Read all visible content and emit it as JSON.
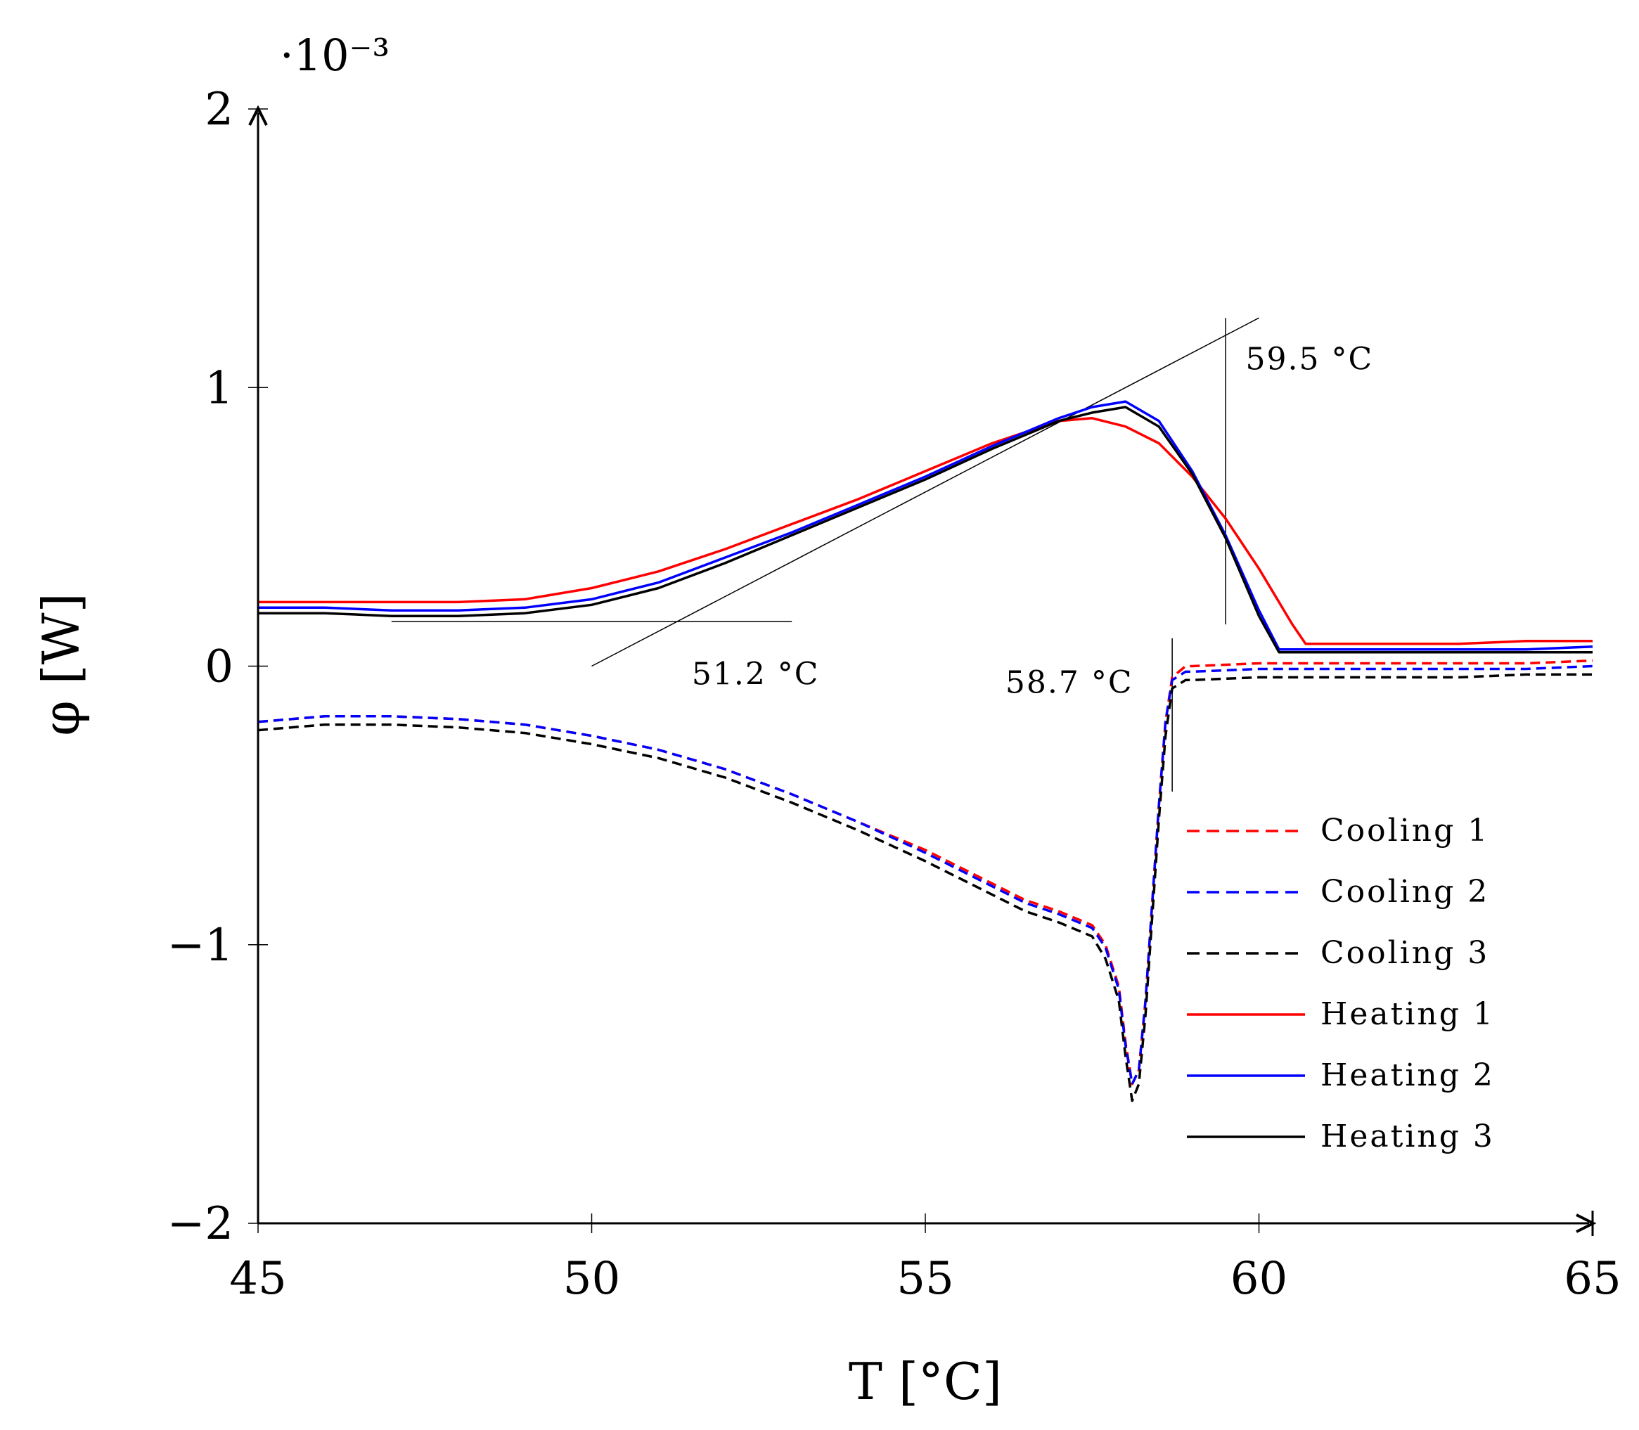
{
  "chart_data": {
    "type": "line",
    "title": "",
    "xlabel": "T [°C]",
    "ylabel": "φ [W]",
    "y_exponent": "·10⁻³",
    "xlim": [
      45,
      65
    ],
    "ylim": [
      -2,
      2
    ],
    "x_ticks": [
      45,
      50,
      55,
      60,
      65
    ],
    "x_tick_labels": [
      "45",
      "50",
      "55",
      "60",
      "65"
    ],
    "y_ticks": [
      -2,
      -1,
      0,
      1,
      2
    ],
    "y_tick_labels": [
      "−2",
      "−1",
      "0",
      "1",
      "2"
    ],
    "grid": false,
    "legend_position": "bottom-right",
    "series": [
      {
        "name": "Cooling 1",
        "color": "#ff0000",
        "dash": true,
        "x": [
          45,
          46,
          47,
          48,
          49,
          50,
          51,
          52,
          53,
          54,
          55,
          56,
          56.5,
          57,
          57.5,
          57.7,
          57.9,
          58.0,
          58.1,
          58.2,
          58.3,
          58.4,
          58.5,
          58.6,
          58.7,
          58.9,
          59,
          60,
          61,
          62,
          63,
          64,
          65
        ],
        "values": [
          -0.2,
          -0.18,
          -0.18,
          -0.19,
          -0.21,
          -0.25,
          -0.3,
          -0.37,
          -0.46,
          -0.56,
          -0.66,
          -0.78,
          -0.84,
          -0.88,
          -0.93,
          -1.0,
          -1.15,
          -1.35,
          -1.5,
          -1.45,
          -1.2,
          -0.85,
          -0.5,
          -0.2,
          -0.04,
          0.0,
          0.0,
          0.01,
          0.01,
          0.01,
          0.01,
          0.01,
          0.02
        ]
      },
      {
        "name": "Cooling 2",
        "color": "#0000ff",
        "dash": true,
        "x": [
          45,
          46,
          47,
          48,
          49,
          50,
          51,
          52,
          53,
          54,
          55,
          56,
          56.5,
          57,
          57.5,
          57.7,
          57.9,
          58.0,
          58.1,
          58.2,
          58.3,
          58.4,
          58.5,
          58.6,
          58.7,
          58.9,
          59,
          60,
          61,
          62,
          63,
          64,
          65
        ],
        "values": [
          -0.2,
          -0.18,
          -0.18,
          -0.19,
          -0.21,
          -0.25,
          -0.3,
          -0.37,
          -0.46,
          -0.56,
          -0.67,
          -0.79,
          -0.85,
          -0.89,
          -0.94,
          -1.01,
          -1.16,
          -1.36,
          -1.5,
          -1.45,
          -1.2,
          -0.85,
          -0.5,
          -0.2,
          -0.05,
          -0.02,
          -0.02,
          -0.01,
          -0.01,
          -0.01,
          -0.01,
          -0.01,
          0.0
        ]
      },
      {
        "name": "Cooling 3",
        "color": "#000000",
        "dash": true,
        "x": [
          45,
          46,
          47,
          48,
          49,
          50,
          51,
          52,
          53,
          54,
          55,
          56,
          56.5,
          57,
          57.5,
          57.7,
          57.9,
          58.0,
          58.1,
          58.2,
          58.3,
          58.4,
          58.5,
          58.6,
          58.7,
          58.9,
          59,
          60,
          61,
          62,
          63,
          64,
          65
        ],
        "values": [
          -0.23,
          -0.21,
          -0.21,
          -0.22,
          -0.24,
          -0.28,
          -0.33,
          -0.4,
          -0.49,
          -0.59,
          -0.7,
          -0.82,
          -0.88,
          -0.92,
          -0.97,
          -1.05,
          -1.2,
          -1.4,
          -1.56,
          -1.5,
          -1.25,
          -0.9,
          -0.55,
          -0.25,
          -0.08,
          -0.05,
          -0.05,
          -0.04,
          -0.04,
          -0.04,
          -0.04,
          -0.03,
          -0.03
        ]
      },
      {
        "name": "Heating 1",
        "color": "#ff0000",
        "dash": false,
        "x": [
          45,
          46,
          47,
          48,
          49,
          50,
          51,
          52,
          53,
          54,
          55,
          56,
          57,
          57.5,
          58,
          58.5,
          59,
          59.5,
          60,
          60.5,
          60.7,
          61,
          62,
          63,
          64,
          65
        ],
        "values": [
          0.23,
          0.23,
          0.23,
          0.23,
          0.24,
          0.28,
          0.34,
          0.42,
          0.51,
          0.6,
          0.7,
          0.8,
          0.88,
          0.89,
          0.86,
          0.8,
          0.68,
          0.53,
          0.35,
          0.15,
          0.08,
          0.08,
          0.08,
          0.08,
          0.09,
          0.09
        ]
      },
      {
        "name": "Heating 2",
        "color": "#0000ff",
        "dash": false,
        "x": [
          45,
          46,
          47,
          48,
          49,
          50,
          51,
          52,
          53,
          54,
          55,
          56,
          57,
          57.5,
          58,
          58.5,
          59,
          59.5,
          60,
          60.3,
          60.5,
          61,
          62,
          63,
          64,
          65
        ],
        "values": [
          0.21,
          0.21,
          0.2,
          0.2,
          0.21,
          0.24,
          0.3,
          0.39,
          0.48,
          0.58,
          0.68,
          0.79,
          0.89,
          0.93,
          0.95,
          0.88,
          0.7,
          0.47,
          0.2,
          0.06,
          0.06,
          0.06,
          0.06,
          0.06,
          0.06,
          0.07
        ]
      },
      {
        "name": "Heating 3",
        "color": "#000000",
        "dash": false,
        "x": [
          45,
          46,
          47,
          48,
          49,
          50,
          51,
          52,
          53,
          54,
          55,
          56,
          57,
          57.5,
          58,
          58.5,
          59,
          59.5,
          60,
          60.3,
          60.5,
          61,
          62,
          63,
          64,
          65
        ],
        "values": [
          0.19,
          0.19,
          0.18,
          0.18,
          0.19,
          0.22,
          0.28,
          0.37,
          0.47,
          0.57,
          0.67,
          0.78,
          0.88,
          0.91,
          0.93,
          0.86,
          0.69,
          0.46,
          0.18,
          0.05,
          0.05,
          0.05,
          0.05,
          0.05,
          0.05,
          0.05
        ]
      }
    ],
    "construction_lines": [
      {
        "name": "baseline-heating",
        "x": [
          47,
          53
        ],
        "y": [
          0.16,
          0.16
        ]
      },
      {
        "name": "tangent-heating-onset",
        "x": [
          50,
          60
        ],
        "y": [
          0.0,
          1.25
        ]
      },
      {
        "name": "vertical-59-5",
        "x": [
          59.5,
          59.5
        ],
        "y": [
          0.15,
          1.25
        ]
      },
      {
        "name": "vertical-58-7",
        "x": [
          58.7,
          58.7
        ],
        "y": [
          -0.45,
          0.1
        ]
      }
    ],
    "annotations": [
      {
        "name": "annotation-51-2",
        "text": "51.2 °C",
        "x": 51.5,
        "y": -0.03
      },
      {
        "name": "annotation-59-5",
        "text": "59.5 °C",
        "x": 59.8,
        "y": 1.1
      },
      {
        "name": "annotation-58-7",
        "text": "58.7 °C",
        "x": 56.2,
        "y": -0.06
      }
    ]
  }
}
